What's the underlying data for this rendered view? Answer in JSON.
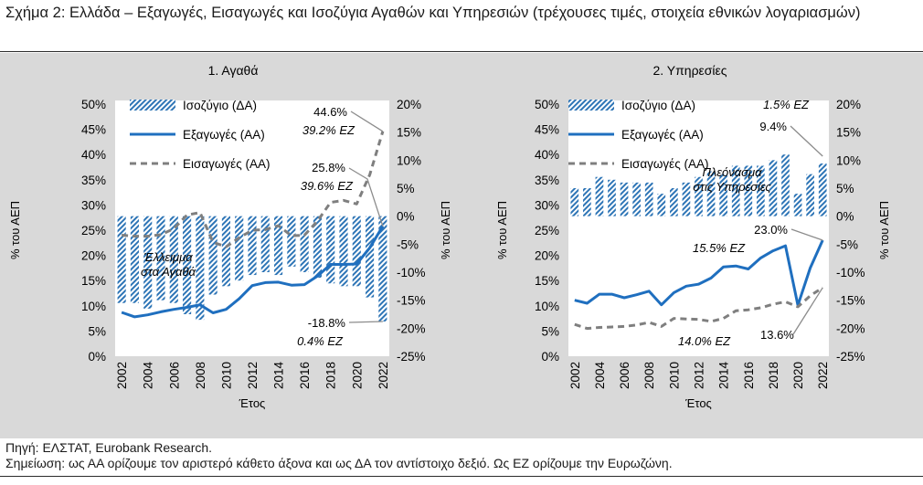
{
  "figure": {
    "title": "Σχήμα 2: Ελλάδα – Εξαγωγές, Εισαγωγές και Ισοζύγια Αγαθών και Υπηρεσιών (τρέχουσες τιμές, στοιχεία εθνικών λογαριασμών)",
    "source": "Πηγή: ΕΛΣΤΑΤ, Eurobank Research.",
    "note": "Σημείωση: ως ΑΑ ορίζουμε τον αριστερό κάθετο άξονα και ως ΔΑ τον αντίστοιχο δεξιό. Ως ΕΖ ορίζουμε την Ευρωζώνη."
  },
  "colors": {
    "background": "#ffffff",
    "panel": "#d9d9d9",
    "exports": "#1f6fbf",
    "imports": "#7f7f7f",
    "balance": "#2e75b6"
  },
  "chart_data": [
    {
      "type": "bar+line",
      "title": "1. Αγαθά",
      "xlabel": "Έτος",
      "ylabel_left": "% του ΑΕΠ",
      "ylabel_right": "% του ΑΕΠ",
      "ylim_left": [
        0,
        50
      ],
      "ylim_right": [
        -25,
        20
      ],
      "left_ticks": [
        "0%",
        "5%",
        "10%",
        "15%",
        "20%",
        "25%",
        "30%",
        "35%",
        "40%",
        "45%",
        "50%"
      ],
      "right_ticks": [
        "-25%",
        "-20%",
        "-15%",
        "-10%",
        "-5%",
        "0%",
        "5%",
        "10%",
        "15%",
        "20%"
      ],
      "x_ticks": [
        "2002",
        "2004",
        "2006",
        "2008",
        "2010",
        "2012",
        "2014",
        "2016",
        "2018",
        "2020",
        "2022"
      ],
      "x": [
        2002,
        2003,
        2004,
        2005,
        2006,
        2007,
        2008,
        2009,
        2010,
        2011,
        2012,
        2013,
        2014,
        2015,
        2016,
        2017,
        2018,
        2019,
        2020,
        2021,
        2022
      ],
      "legend": [
        "Ισοζύγιο (ΔΑ)",
        "Εξαγωγές (ΑΑ)",
        "Εισαγωγές (ΑΑ)"
      ],
      "series": [
        {
          "name": "Ισοζύγιο (ΔΑ)",
          "axis": "right",
          "kind": "bar",
          "values": [
            -15.5,
            -15.5,
            -16.5,
            -15.0,
            -15.5,
            -17.5,
            -18.5,
            -14.0,
            -12.5,
            -11.5,
            -10.5,
            -10.0,
            -10.5,
            -9.0,
            -10.0,
            -11.0,
            -12.0,
            -12.5,
            -12.5,
            -14.5,
            -18.8
          ]
        },
        {
          "name": "Εξαγωγές (ΑΑ)",
          "axis": "left",
          "kind": "line",
          "values": [
            8.7,
            7.8,
            8.2,
            8.8,
            9.3,
            9.7,
            10.2,
            8.6,
            9.3,
            11.4,
            14.0,
            14.6,
            14.7,
            14.1,
            14.2,
            15.9,
            18.2,
            18.2,
            18.3,
            21.5,
            25.8
          ]
        },
        {
          "name": "Εισαγωγές (ΑΑ)",
          "axis": "left",
          "kind": "line",
          "values": [
            24.0,
            23.8,
            23.8,
            24.1,
            25.3,
            28.0,
            28.5,
            22.6,
            21.7,
            23.5,
            25.0,
            25.1,
            25.9,
            23.9,
            24.0,
            26.8,
            30.5,
            30.9,
            30.2,
            36.0,
            44.6
          ]
        }
      ],
      "annotations": {
        "imports_last": "44.6%",
        "imports_ez": "39.2% ΕΖ",
        "exports_last": "25.8%",
        "exports_ez": "39.6% ΕΖ",
        "balance_last": "-18.8%",
        "balance_ez": "0.4% ΕΖ",
        "bars_label": "Έλλειμμα στα Αγαθά"
      }
    },
    {
      "type": "bar+line",
      "title": "2. Υπηρεσίες",
      "xlabel": "Έτος",
      "ylabel_left": "% του ΑΕΠ",
      "ylabel_right": "% του ΑΕΠ",
      "ylim_left": [
        0,
        50
      ],
      "ylim_right": [
        -25,
        20
      ],
      "left_ticks": [
        "0%",
        "5%",
        "10%",
        "15%",
        "20%",
        "25%",
        "30%",
        "35%",
        "40%",
        "45%",
        "50%"
      ],
      "right_ticks": [
        "-25%",
        "-20%",
        "-15%",
        "-10%",
        "-5%",
        "0%",
        "5%",
        "10%",
        "15%",
        "20%"
      ],
      "x_ticks": [
        "2002",
        "2004",
        "2006",
        "2008",
        "2010",
        "2012",
        "2014",
        "2016",
        "2018",
        "2020",
        "2022"
      ],
      "x": [
        2002,
        2003,
        2004,
        2005,
        2006,
        2007,
        2008,
        2009,
        2010,
        2011,
        2012,
        2013,
        2014,
        2015,
        2016,
        2017,
        2018,
        2019,
        2020,
        2021,
        2022
      ],
      "legend": [
        "Ισοζύγιο (ΔΑ)",
        "Εξαγωγές (ΑΑ)",
        "Εισαγωγές (ΑΑ)"
      ],
      "series": [
        {
          "name": "Ισοζύγιο (ΔΑ)",
          "axis": "right",
          "kind": "bar",
          "values": [
            5.0,
            5.0,
            7.0,
            6.5,
            6.0,
            6.0,
            6.0,
            4.0,
            5.0,
            6.0,
            7.0,
            8.0,
            7.5,
            9.0,
            9.0,
            9.0,
            10.0,
            11.0,
            4.0,
            7.5,
            9.4
          ]
        },
        {
          "name": "Εξαγωγές (ΑΑ)",
          "axis": "left",
          "kind": "line",
          "values": [
            11.1,
            10.5,
            12.3,
            12.3,
            11.6,
            12.2,
            12.9,
            10.2,
            12.6,
            13.9,
            14.3,
            15.5,
            17.7,
            17.9,
            17.3,
            19.5,
            20.9,
            21.9,
            10.1,
            17.5,
            23.0
          ]
        },
        {
          "name": "Εισαγωγές (ΑΑ)",
          "axis": "left",
          "kind": "line",
          "values": [
            6.3,
            5.5,
            5.7,
            5.8,
            5.9,
            6.2,
            6.7,
            5.9,
            7.5,
            7.4,
            7.3,
            6.9,
            7.5,
            9.0,
            9.2,
            9.6,
            10.3,
            10.8,
            9.8,
            12.0,
            13.6
          ]
        }
      ],
      "annotations": {
        "balance_ez": "1.5% ΕΖ",
        "balance_last": "9.4%",
        "bars_label": "Πλεόνασμα στις Υπηρεσίες",
        "exports_last": "23.0%",
        "exports_ez": "15.5% ΕΖ",
        "imports_ez": "14.0% ΕΖ",
        "imports_last": "13.6%"
      }
    }
  ]
}
